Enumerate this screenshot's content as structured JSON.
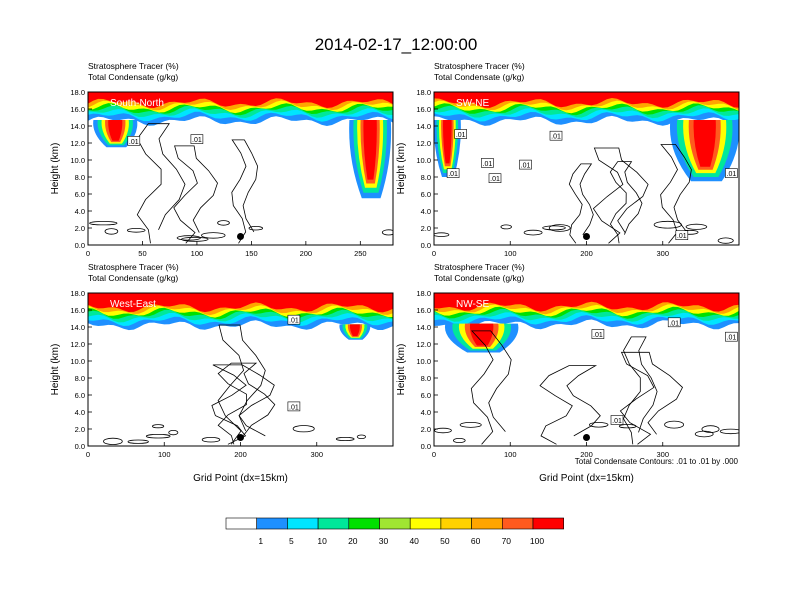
{
  "title": "2014-02-17_12:00:00",
  "footnote": "Total Condensate Contours: .01 to .01 by .000",
  "colorbar": {
    "colors": [
      "#ffffff",
      "#1e90ff",
      "#00e5ff",
      "#00e89a",
      "#00e000",
      "#a0e632",
      "#ffff00",
      "#ffd200",
      "#ffa500",
      "#ff5a1e",
      "#ff0000"
    ],
    "labels": [
      "1",
      "5",
      "10",
      "20",
      "30",
      "40",
      "50",
      "60",
      "70",
      "100"
    ]
  },
  "chart_data": [
    {
      "type": "heatmap",
      "panel": "top-left",
      "label": "South-North",
      "title_line1": "Stratosphere Tracer   (%)",
      "title_line2": "Total Condensate   (g/kg)",
      "ylabel": "Height (km)",
      "xlabel": "",
      "xlim": [
        0,
        280
      ],
      "ylim": [
        0,
        18
      ],
      "xticks": [
        "0",
        "50",
        "100",
        "150",
        "200",
        "250"
      ],
      "xtick_values": [
        0,
        50,
        100,
        150,
        200,
        250
      ],
      "yticks": [
        "0.0",
        "2.0",
        "4.0",
        "6.0",
        "8.0",
        "10.0",
        "12.0",
        "14.0",
        "16.0",
        "18.0"
      ],
      "tropopause_km": 16.2,
      "intrusions": [
        {
          "x_start": 5,
          "x_end": 45,
          "bottom_km": 11.5
        },
        {
          "x_start": 240,
          "x_end": 278,
          "bottom_km": 5.5
        }
      ],
      "contour_labels": [
        {
          "text": ".01",
          "x": 42,
          "y": 12.2
        },
        {
          "text": ".01",
          "x": 100,
          "y": 12.4
        }
      ],
      "marker": {
        "x": 140,
        "y": 1.0
      }
    },
    {
      "type": "heatmap",
      "panel": "top-right",
      "label": "SW-NE",
      "title_line1": "Stratosphere Tracer   (%)",
      "title_line2": "Total Condensate   (g/kg)",
      "ylabel": "Height (km)",
      "xlabel": "",
      "xlim": [
        0,
        400
      ],
      "ylim": [
        0,
        18
      ],
      "xticks": [
        "0",
        "100",
        "200",
        "300"
      ],
      "xtick_values": [
        0,
        100,
        200,
        300
      ],
      "yticks": [
        "0.0",
        "2.0",
        "4.0",
        "6.0",
        "8.0",
        "10.0",
        "12.0",
        "14.0",
        "16.0",
        "18.0"
      ],
      "tropopause_km": 16.2,
      "intrusions": [
        {
          "x_start": 0,
          "x_end": 35,
          "bottom_km": 8.0
        },
        {
          "x_start": 310,
          "x_end": 400,
          "bottom_km": 7.5
        }
      ],
      "contour_labels": [
        {
          "text": ".01",
          "x": 35,
          "y": 13.0
        },
        {
          "text": ".01",
          "x": 160,
          "y": 12.8
        },
        {
          "text": ".01",
          "x": 70,
          "y": 9.6
        },
        {
          "text": ".01",
          "x": 120,
          "y": 9.4
        },
        {
          "text": ".01",
          "x": 80,
          "y": 7.8
        },
        {
          "text": ".01",
          "x": 25,
          "y": 8.4
        },
        {
          "text": ".01",
          "x": 390,
          "y": 8.4
        },
        {
          "text": ".01",
          "x": 325,
          "y": 1.1
        }
      ],
      "marker": {
        "x": 200,
        "y": 1.0
      }
    },
    {
      "type": "heatmap",
      "panel": "bottom-left",
      "label": "West-East",
      "title_line1": "Stratosphere Tracer   (%)",
      "title_line2": "Total Condensate   (g/kg)",
      "ylabel": "Height (km)",
      "xlabel": "Grid Point (dx=15km)",
      "xlim": [
        0,
        400
      ],
      "ylim": [
        0,
        18
      ],
      "xticks": [
        "0",
        "100",
        "200",
        "300"
      ],
      "xtick_values": [
        0,
        100,
        200,
        300
      ],
      "yticks": [
        "0.0",
        "2.0",
        "4.0",
        "6.0",
        "8.0",
        "10.0",
        "12.0",
        "14.0",
        "16.0",
        "18.0"
      ],
      "tropopause_km": 15.8,
      "intrusions": [
        {
          "x_start": 330,
          "x_end": 370,
          "bottom_km": 12.5
        }
      ],
      "contour_labels": [
        {
          "text": ".01",
          "x": 270,
          "y": 14.8
        },
        {
          "text": ".01",
          "x": 270,
          "y": 4.6
        }
      ],
      "marker": {
        "x": 200,
        "y": 1.0
      }
    },
    {
      "type": "heatmap",
      "panel": "bottom-right",
      "label": "NW-SE",
      "title_line1": "Stratosphere Tracer   (%)",
      "title_line2": "Total Condensate   (g/kg)",
      "ylabel": "Height (km)",
      "xlabel": "Grid Point (dx=15km)",
      "xlim": [
        0,
        400
      ],
      "ylim": [
        0,
        18
      ],
      "xticks": [
        "0",
        "100",
        "200",
        "300"
      ],
      "xtick_values": [
        0,
        100,
        200,
        300
      ],
      "yticks": [
        "0.0",
        "2.0",
        "4.0",
        "6.0",
        "8.0",
        "10.0",
        "12.0",
        "14.0",
        "16.0",
        "18.0"
      ],
      "tropopause_km": 15.9,
      "intrusions": [
        {
          "x_start": 15,
          "x_end": 110,
          "bottom_km": 11.0
        }
      ],
      "contour_labels": [
        {
          "text": ".01",
          "x": 215,
          "y": 13.1
        },
        {
          "text": ".01",
          "x": 315,
          "y": 14.5
        },
        {
          "text": ".01",
          "x": 390,
          "y": 12.8
        },
        {
          "text": ".01",
          "x": 240,
          "y": 3.0
        }
      ],
      "marker": {
        "x": 200,
        "y": 1.0
      }
    }
  ]
}
